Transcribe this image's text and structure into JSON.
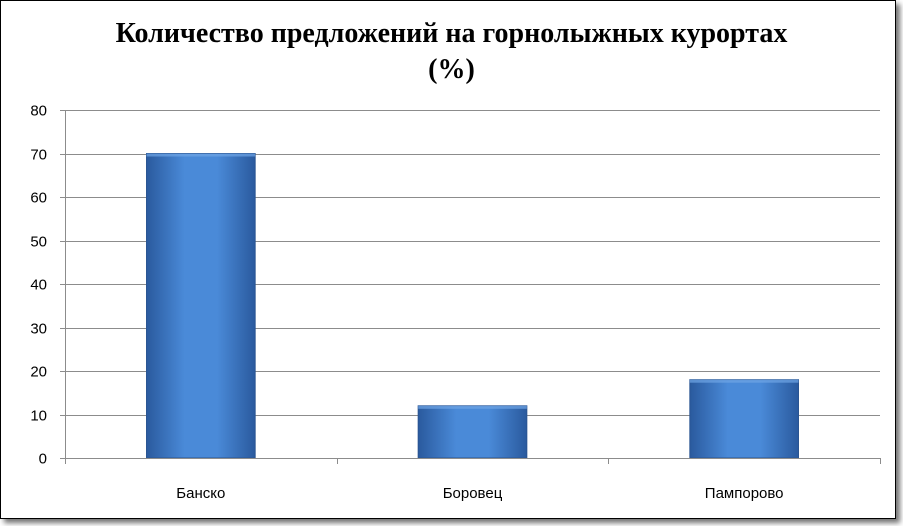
{
  "chart_data": {
    "type": "bar",
    "title_line1": "Количество предложений на горнолыжных курортах",
    "title_line2": "(%)",
    "categories": [
      "Банско",
      "Боровец",
      "Пампорово"
    ],
    "values": [
      70,
      12,
      18
    ],
    "ylim": [
      0,
      80
    ],
    "yticks": [
      0,
      10,
      20,
      30,
      40,
      50,
      60,
      70,
      80
    ],
    "grid": true,
    "legend": "none",
    "bar_color": "#3e78c4"
  }
}
